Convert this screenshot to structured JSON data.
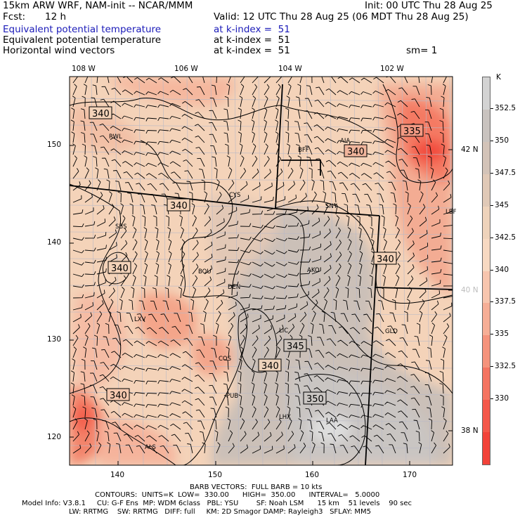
{
  "header": {
    "model": "15km ARW WRF, NAM-init -- NCAR/MMM",
    "init": "Init: 00 UTC Thu 28 Aug 25",
    "fcst_label": "Fcst:",
    "fcst_value": "12 h",
    "valid": "Valid: 12 UTC Thu 28 Aug 25 (06 MDT Thu 28 Aug 25)",
    "line1_field": "Equivalent potential temperature",
    "line1_level": "at k-index =  51",
    "line2_field": "Equivalent potential temperature",
    "line2_level": "at k-index =  51",
    "line3_field": "Horizontal wind vectors",
    "line3_level": "at k-index =  51",
    "smoothing": "sm= 1"
  },
  "axes": {
    "top_lon": [
      "108 W",
      "106 W",
      "104 W",
      "102 W"
    ],
    "left_y": [
      "150",
      "140",
      "130",
      "120"
    ],
    "bottom_x": [
      "140",
      "150",
      "160",
      "170"
    ],
    "right_lat": [
      "42 N",
      "40 N",
      "38 N"
    ]
  },
  "colorbar": {
    "unit": "K",
    "labels": [
      "352.5",
      "350",
      "347.5",
      "345",
      "342.5",
      "340",
      "337.5",
      "335",
      "332.5",
      "330"
    ],
    "colors": [
      "#d3d3d3",
      "#c9c3bf",
      "#d3c3b8",
      "#e0c9b7",
      "#eed3bb",
      "#f7d9c2",
      "#f7c5ae",
      "#f6ae96",
      "#f5937c",
      "#f47461",
      "#f4574a",
      "#f24239"
    ]
  },
  "map": {
    "contour_labels": [
      "340",
      "340",
      "340",
      "340",
      "340",
      "340",
      "335",
      "345",
      "350",
      "340"
    ],
    "places": [
      "RWL",
      "BFF",
      "AIA",
      "CYS",
      "SNY",
      "SBS",
      "DEN",
      "BOU",
      "AKO",
      "LXV",
      "LIC",
      "COS",
      "GLD",
      "PUB",
      "LHX",
      "LAA",
      "ALS",
      "LBF"
    ]
  },
  "footer": {
    "barb": "BARB VECTORS:  FULL BARB = 10 kts",
    "contours": "CONTOURS:  UNITS=K  LOW=  330.00      HIGH=  350.00      INTERVAL=   5.0000",
    "model_info_1": "Model Info: V3.8.1     CU: G-F Ens  MP: WDM 6class   PBL: YSU        SF: Noah LSM      15 km    51 levels    90 sec",
    "model_info_2": "LW: RRTMG    SW: RRTMG   DIFF: full     KM: 2D Smagor DAMP: Rayleigh3   SFLAY: MM5"
  }
}
